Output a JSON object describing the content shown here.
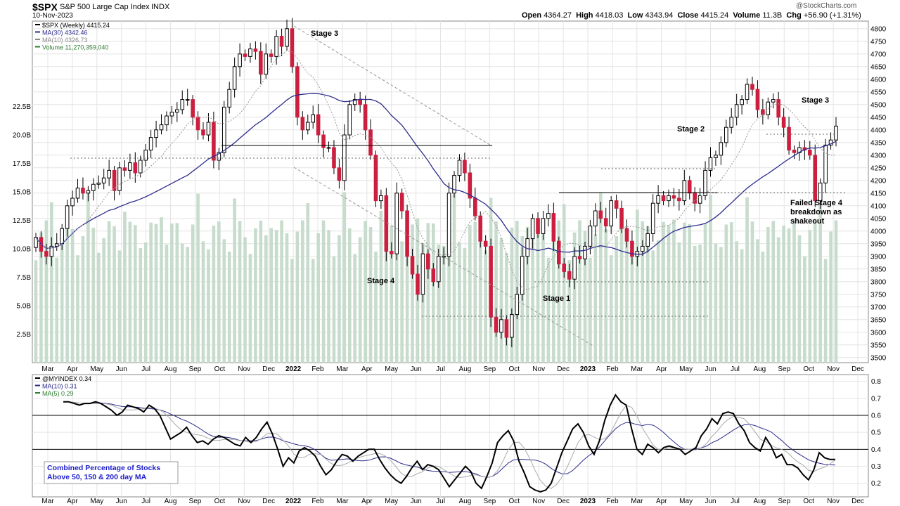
{
  "header": {
    "symbol": "$SPX",
    "name": "S&P 500 Large Cap Index",
    "exchange": "INDX",
    "date": "10-Nov-2023",
    "source": "@StockCharts.com",
    "quote": {
      "open_label": "Open",
      "open": "4364.27",
      "high_label": "High",
      "high": "4418.03",
      "low_label": "Low",
      "low": "4343.94",
      "close_label": "Close",
      "close": "4415.24",
      "volume_label": "Volume",
      "volume": "11.3B",
      "chg_label": "Chg",
      "chg": "+56.90 (+1.31%)"
    }
  },
  "colors": {
    "up": "#ffffff",
    "down": "#cc1e3e",
    "candle_outline": "#000000",
    "ma30": "#2c2c8c",
    "ma10": "#999999",
    "volume": "#c7dccd",
    "grid": "#e4e4e4",
    "annotation": "#000000",
    "trendline": "#999999",
    "indicator": "#000000",
    "ind_ma10": "#2c2c8c",
    "ind_ma5": "#aaaaaa",
    "note_text": "#1c1ccc"
  },
  "chart_data": [
    {
      "type": "candlestick",
      "panel": "price",
      "timeframe": "Weekly",
      "legend": [
        {
          "text": "$SPX (Weekly) 4415.24",
          "color": "#000000"
        },
        {
          "text": "MA(30) 4342.46",
          "color": "#2c2c8c"
        },
        {
          "text": "MA(10) 4326.73",
          "color": "#888888"
        },
        {
          "text": "Volume 11,270,359,040",
          "color": "#2e7d32"
        }
      ],
      "x_tick_labels": [
        "Mar",
        "Apr",
        "May",
        "Jun",
        "Jul",
        "Aug",
        "Sep",
        "Oct",
        "Nov",
        "Dec",
        "2022",
        "Feb",
        "Mar",
        "Apr",
        "May",
        "Jun",
        "Jul",
        "Aug",
        "Sep",
        "Oct",
        "Nov",
        "Dec",
        "2023",
        "Feb",
        "Mar",
        "Apr",
        "May",
        "Jun",
        "Jul",
        "Aug",
        "Sep",
        "Oct",
        "Nov",
        "Dec"
      ],
      "bold_x_ticks": [
        "2022",
        "2023"
      ],
      "ylim": [
        3480,
        4830
      ],
      "y_ticks": [
        3500,
        3550,
        3600,
        3650,
        3700,
        3750,
        3800,
        3850,
        3900,
        3950,
        4000,
        4050,
        4100,
        4150,
        4200,
        4250,
        4300,
        4350,
        4400,
        4450,
        4500,
        4550,
        4600,
        4650,
        4700,
        4750,
        4800
      ],
      "volume_ylim": [
        0,
        30
      ],
      "volume_ticks": [
        "2.5B",
        "5.0B",
        "7.5B",
        "10.0B",
        "12.5B",
        "15.0B",
        "17.5B",
        "20.0B",
        "22.5B"
      ],
      "volume_tick_values": [
        2.5,
        5,
        7.5,
        10,
        12.5,
        15,
        17.5,
        20,
        22.5
      ],
      "ohlc_weekly_close_path": [
        3975,
        3920,
        3900,
        3940,
        3950,
        4010,
        4100,
        4130,
        4170,
        4150,
        4160,
        4185,
        4190,
        4210,
        4240,
        4160,
        4250,
        4240,
        4270,
        4230,
        4280,
        4320,
        4370,
        4400,
        4420,
        4455,
        4470,
        4480,
        4520,
        4520,
        4450,
        4400,
        4380,
        4430,
        4280,
        4310,
        4490,
        4560,
        4650,
        4700,
        4690,
        4720,
        4710,
        4620,
        4700,
        4690,
        4770,
        4730,
        4800,
        4650,
        4450,
        4400,
        4430,
        4460,
        4380,
        4330,
        4330,
        4250,
        4200,
        4380,
        4500,
        4520,
        4500,
        4400,
        4300,
        4120,
        4140,
        3920,
        3910,
        4150,
        4080,
        3900,
        3830,
        3750,
        3910,
        3850,
        3800,
        3900,
        3900,
        4150,
        4220,
        4280,
        4230,
        4130,
        4060,
        3960,
        3940,
        3660,
        3600,
        3650,
        3580,
        3670,
        3750,
        3900,
        3970,
        4050,
        3990,
        4050,
        4070,
        3960,
        3870,
        3840,
        3810,
        3900,
        3890,
        3940,
        4020,
        4080,
        4050,
        4020,
        4120,
        4090,
        4010,
        3960,
        3900,
        3920,
        3940,
        3990,
        4110,
        4140,
        4120,
        4140,
        4130,
        4120,
        4200,
        4150,
        4110,
        4140,
        4240,
        4290,
        4300,
        4350,
        4410,
        4450,
        4500,
        4520,
        4580,
        4560,
        4480,
        4460,
        4510,
        4520,
        4450,
        4410,
        4320,
        4310,
        4330,
        4320,
        4300,
        4120,
        4190,
        4340,
        4360,
        4415
      ],
      "annotations": [
        {
          "text": "Stage 3",
          "at": "Jan 2022 peak"
        },
        {
          "text": "Stage 4",
          "at": "May 2022"
        },
        {
          "text": "Stage 1",
          "at": "Nov 2022"
        },
        {
          "text": "Stage 2",
          "at": "Jun 2023"
        },
        {
          "text": "Stage 3",
          "at": "Oct 2023"
        },
        {
          "text": "Failed Stage 4 breakdown as shakeout",
          "at": "Nov 2023"
        }
      ]
    },
    {
      "type": "line",
      "panel": "indicator",
      "legend": [
        {
          "text": "@MYINDEX 0.34",
          "color": "#000000"
        },
        {
          "text": "MA(10) 0.31",
          "color": "#2c2c8c"
        },
        {
          "text": "MA(5) 0.29",
          "color": "#2e7d32"
        }
      ],
      "ylim": [
        0.12,
        0.84
      ],
      "y_ticks": [
        0.2,
        0.3,
        0.4,
        0.5,
        0.6,
        0.7,
        0.8
      ],
      "reference_lines": [
        0.6,
        0.4
      ],
      "note": "Combined Percentage of Stocks Above 50, 150 & 200 day MA",
      "note_lines": [
        "Combined Percentage of Stocks",
        "Above 50, 150 & 200 day MA"
      ],
      "myindex": [
        0.68,
        0.68,
        0.67,
        0.66,
        0.67,
        0.67,
        0.68,
        0.67,
        0.65,
        0.63,
        0.6,
        0.62,
        0.66,
        0.65,
        0.64,
        0.62,
        0.66,
        0.64,
        0.6,
        0.53,
        0.46,
        0.48,
        0.5,
        0.53,
        0.48,
        0.44,
        0.45,
        0.43,
        0.46,
        0.48,
        0.47,
        0.45,
        0.43,
        0.42,
        0.47,
        0.44,
        0.47,
        0.52,
        0.56,
        0.49,
        0.4,
        0.3,
        0.35,
        0.32,
        0.39,
        0.41,
        0.39,
        0.36,
        0.3,
        0.25,
        0.28,
        0.33,
        0.37,
        0.36,
        0.33,
        0.36,
        0.38,
        0.4,
        0.4,
        0.34,
        0.29,
        0.25,
        0.22,
        0.2,
        0.24,
        0.29,
        0.33,
        0.28,
        0.31,
        0.3,
        0.28,
        0.23,
        0.18,
        0.22,
        0.26,
        0.3,
        0.27,
        0.2,
        0.17,
        0.24,
        0.32,
        0.44,
        0.48,
        0.51,
        0.45,
        0.33,
        0.26,
        0.18,
        0.16,
        0.15,
        0.16,
        0.2,
        0.29,
        0.38,
        0.45,
        0.52,
        0.55,
        0.5,
        0.42,
        0.37,
        0.45,
        0.57,
        0.66,
        0.72,
        0.68,
        0.66,
        0.52,
        0.4,
        0.37,
        0.43,
        0.41,
        0.38,
        0.41,
        0.42,
        0.41,
        0.4,
        0.37,
        0.39,
        0.41,
        0.48,
        0.52,
        0.58,
        0.55,
        0.61,
        0.62,
        0.61,
        0.55,
        0.51,
        0.44,
        0.41,
        0.39,
        0.47,
        0.42,
        0.35,
        0.37,
        0.31,
        0.31,
        0.29,
        0.25,
        0.22,
        0.28,
        0.38,
        0.35,
        0.34,
        0.34
      ]
    }
  ]
}
